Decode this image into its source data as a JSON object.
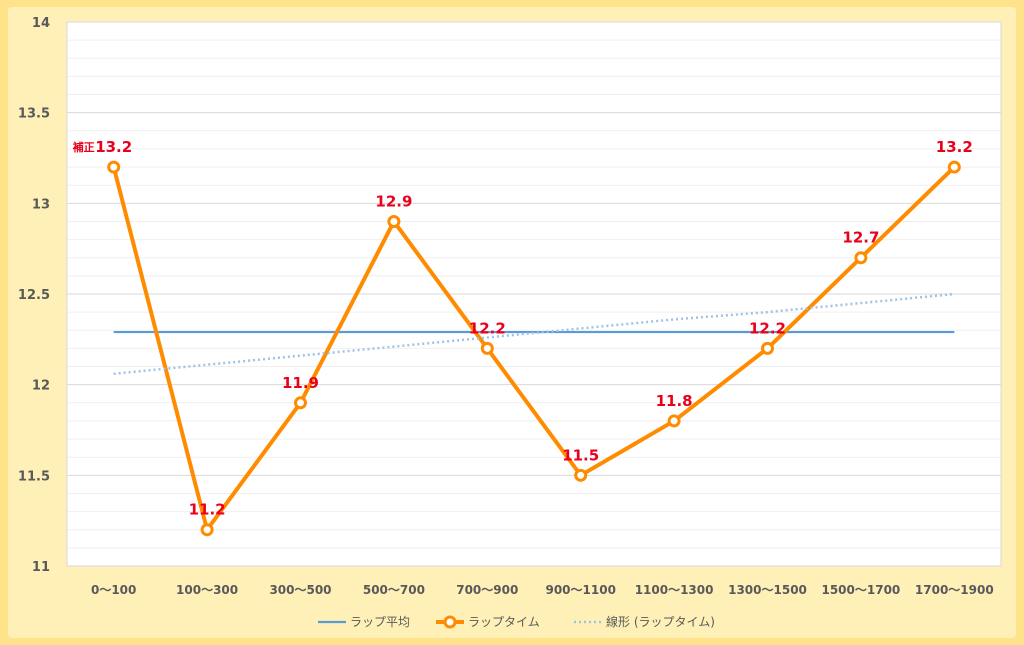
{
  "chart_data": {
    "type": "line",
    "categories": [
      "0〜100",
      "100〜300",
      "300〜500",
      "500〜700",
      "700〜900",
      "900〜1100",
      "1100〜1300",
      "1300〜1500",
      "1500〜1700",
      "1700〜1900"
    ],
    "ylim": [
      11,
      14
    ],
    "yticks": [
      "11",
      "11.5",
      "12",
      "12.5",
      "13",
      "13.5",
      "14"
    ],
    "grid": true,
    "legend_position": "bottom",
    "annotation": "補正",
    "series": [
      {
        "name": "ラップ平均",
        "kind": "solid",
        "color": "#5B9BD5",
        "values": [
          12.29,
          12.29,
          12.29,
          12.29,
          12.29,
          12.29,
          12.29,
          12.29,
          12.29,
          12.29
        ]
      },
      {
        "name": "ラップタイム",
        "kind": "markers",
        "color": "#FF8C00",
        "values": [
          13.2,
          11.2,
          11.9,
          12.9,
          12.2,
          11.5,
          11.8,
          12.2,
          12.7,
          13.2
        ],
        "labels": [
          "13.2",
          "11.2",
          "11.9",
          "12.9",
          "12.2",
          "11.5",
          "11.8",
          "12.2",
          "12.7",
          "13.2"
        ]
      },
      {
        "name": "線形 (ラップタイム)",
        "kind": "dotted",
        "color": "#9DC3E6",
        "values": [
          12.06,
          12.11,
          12.16,
          12.21,
          12.26,
          12.31,
          12.36,
          12.4,
          12.45,
          12.5
        ]
      }
    ]
  }
}
